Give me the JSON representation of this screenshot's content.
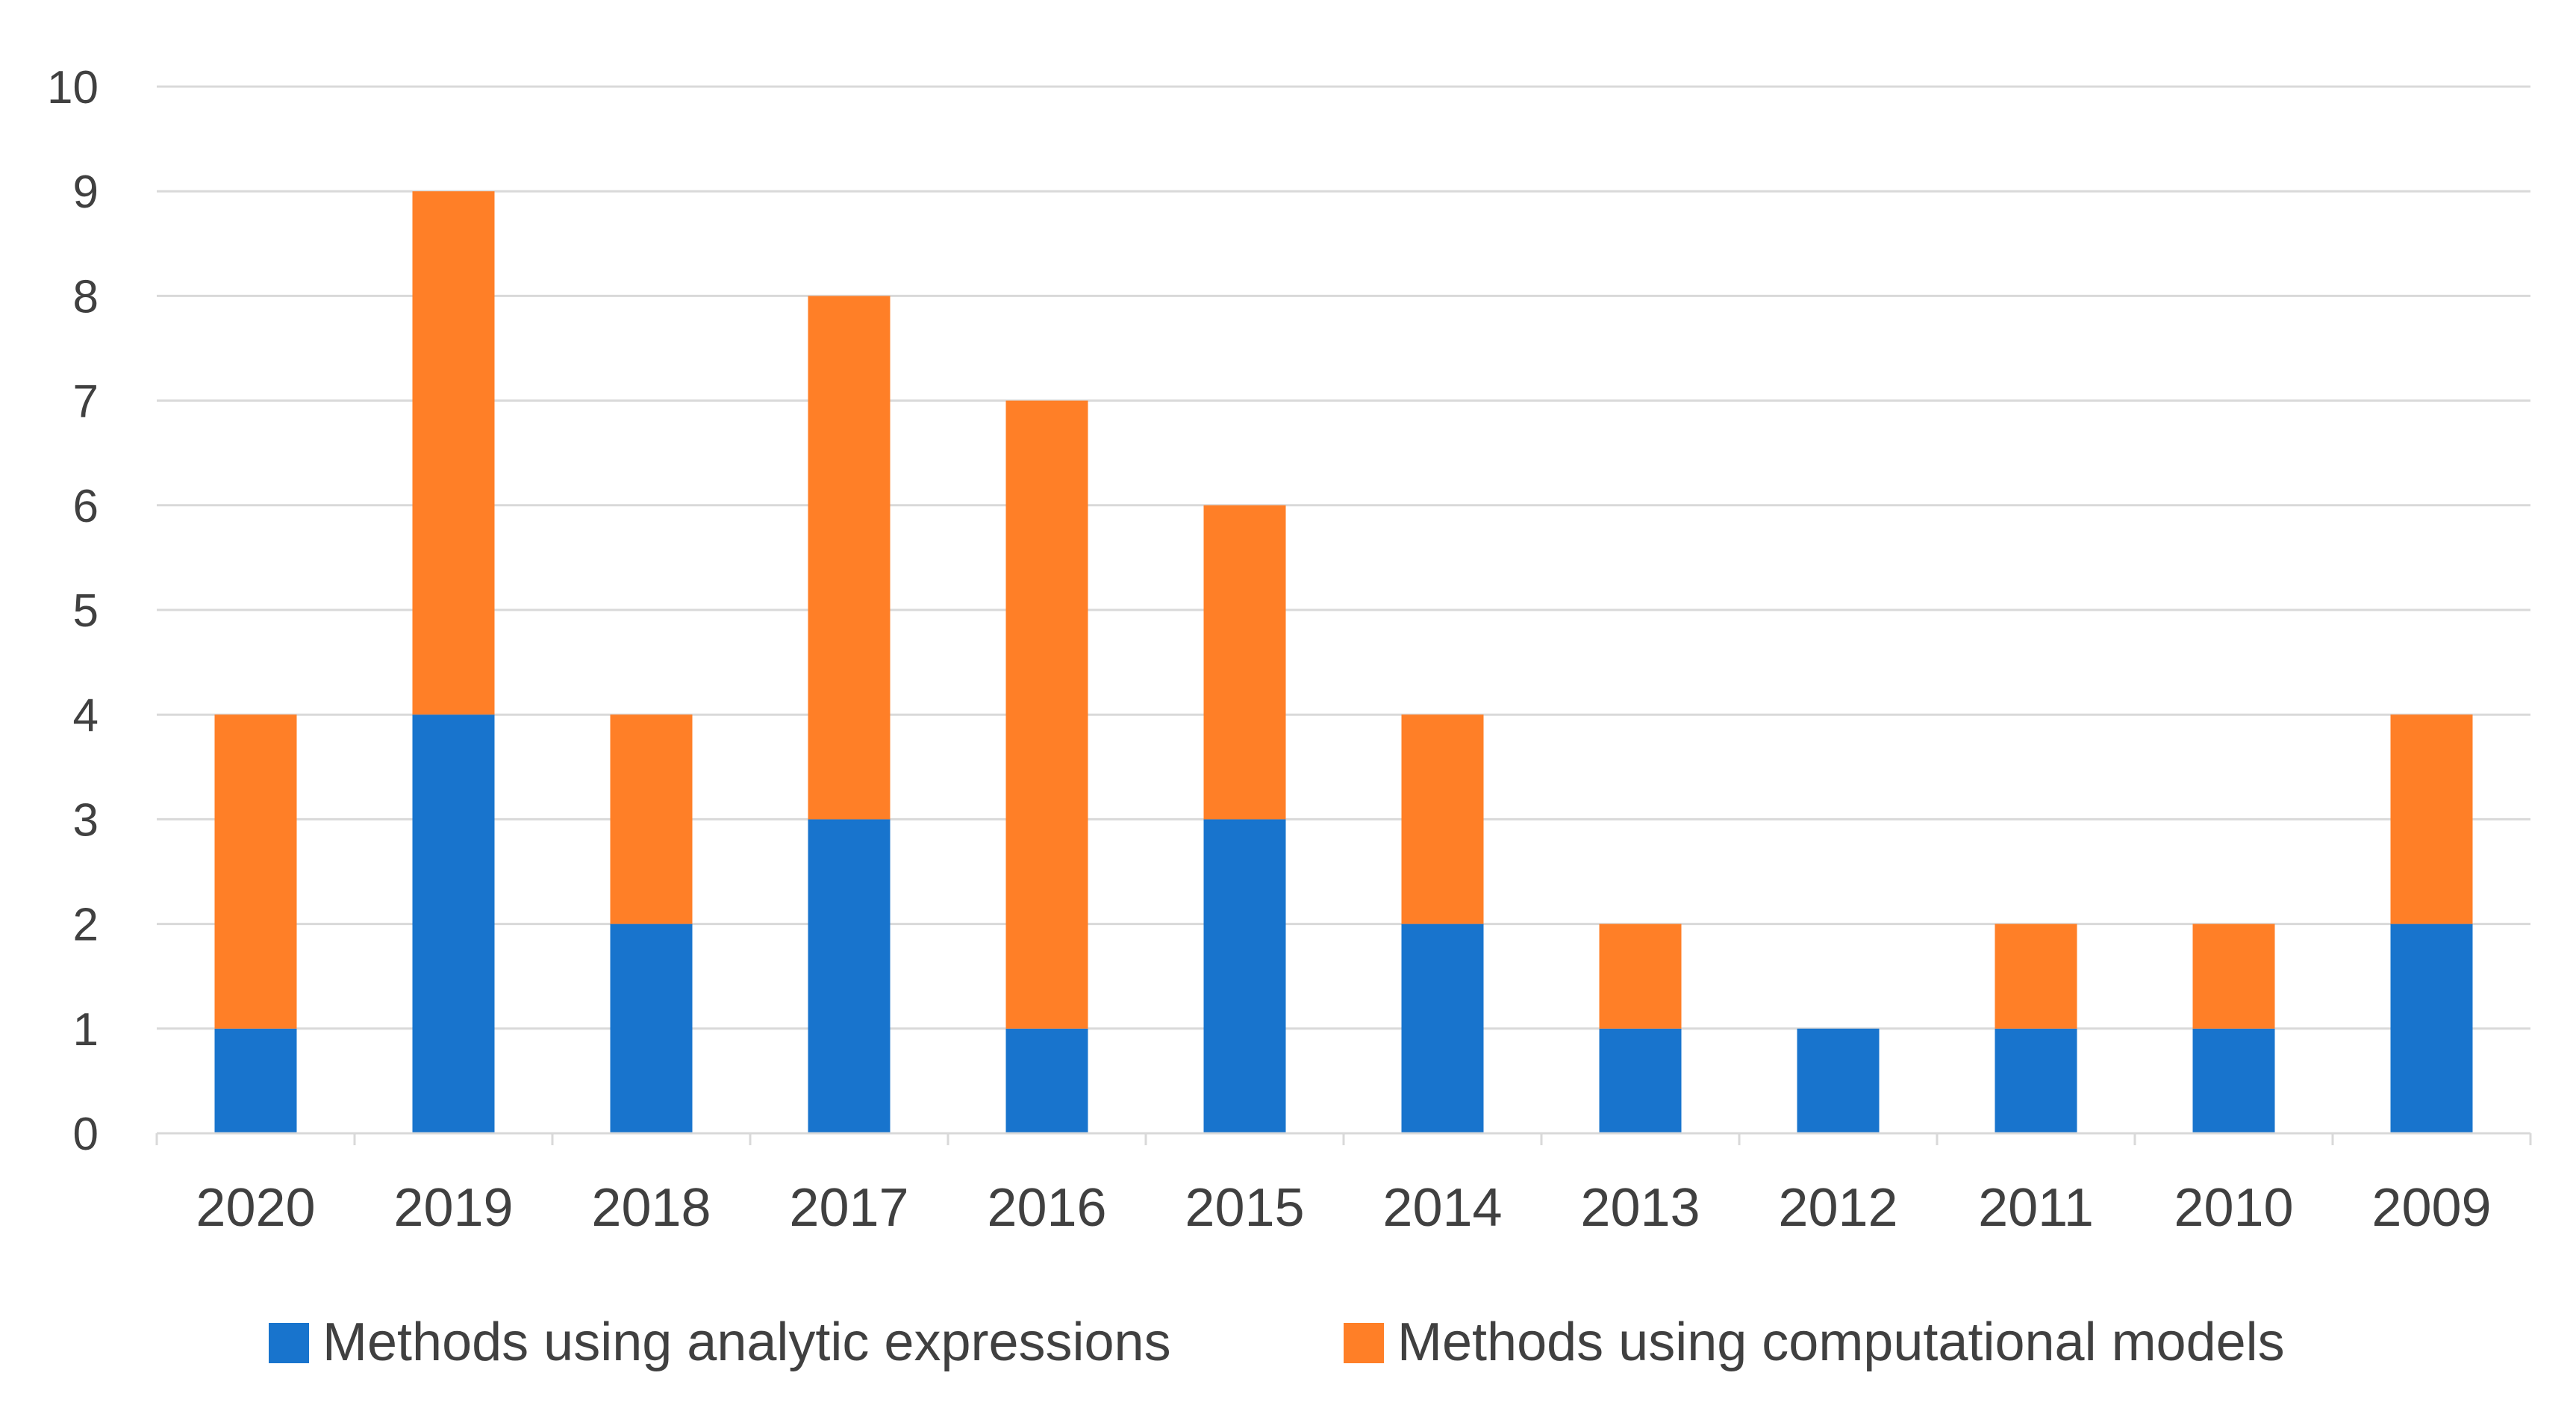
{
  "chart_data": {
    "type": "bar",
    "stacked": true,
    "categories": [
      "2020",
      "2019",
      "2018",
      "2017",
      "2016",
      "2015",
      "2014",
      "2013",
      "2012",
      "2011",
      "2010",
      "2009"
    ],
    "series": [
      {
        "name": "Methods using analytic expressions",
        "color": "#1874CD",
        "values": [
          1,
          4,
          2,
          3,
          1,
          3,
          2,
          1,
          1,
          1,
          1,
          2
        ]
      },
      {
        "name": "Methods using computational models",
        "color": "#FF7F27",
        "values": [
          3,
          5,
          2,
          5,
          6,
          3,
          2,
          1,
          0,
          1,
          1,
          2
        ]
      }
    ],
    "y_ticks": [
      "0",
      "1",
      "2",
      "3",
      "4",
      "5",
      "6",
      "7",
      "8",
      "9",
      "10"
    ],
    "ylim": [
      0,
      10
    ],
    "grid": true,
    "legend_position": "bottom"
  }
}
